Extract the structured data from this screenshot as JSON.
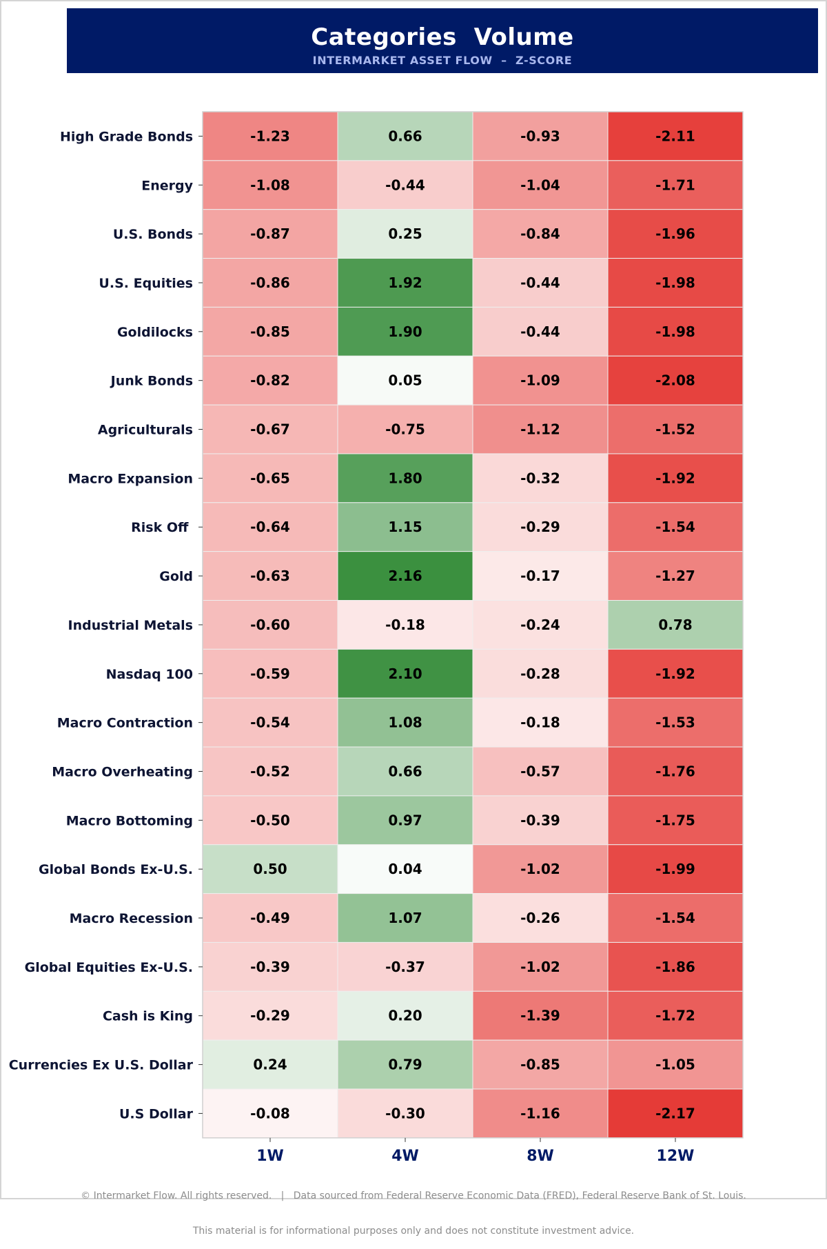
{
  "header": {
    "title": "Categories  Volume",
    "subtitle": "INTERMARKET ASSET FLOW  –  Z-SCORE"
  },
  "footer": {
    "line1": "© Intermarket Flow. All rights reserved.   |   Data sourced from Federal Reserve Economic Data (FRED), Federal Reserve Bank of St. Louis.",
    "line2": "This material is for informational purposes only and does not constitute investment advice."
  },
  "colors": {
    "header_bg": "#001a66",
    "subtitle": "#a9b8ee",
    "label_text": "#0d1433",
    "axis_text": "#001a66",
    "negative_max": "#e53935",
    "positive_max": "#388e3c",
    "neutral": "#ffffff"
  },
  "chart_data": {
    "type": "heatmap",
    "title": "",
    "xlabel": "",
    "ylabel": "",
    "columns": [
      "1W",
      "4W",
      "8W",
      "12W"
    ],
    "rows": [
      "High Grade Bonds",
      "Energy",
      "U.S. Bonds",
      "U.S. Equities",
      "Goldilocks",
      "Junk Bonds",
      "Agriculturals",
      "Macro Expansion",
      "Risk Off ",
      "Gold",
      "Industrial Metals",
      "Nasdaq 100",
      "Macro Contraction",
      "Macro Overheating",
      "Macro Bottoming",
      "Global Bonds Ex-U.S.",
      "Macro Recession",
      "Global Equities Ex-U.S.",
      "Cash is King",
      "Currencies Ex U.S. Dollar",
      "U.S Dollar"
    ],
    "values": [
      [
        -1.23,
        0.66,
        -0.93,
        -2.11
      ],
      [
        -1.08,
        -0.44,
        -1.04,
        -1.71
      ],
      [
        -0.87,
        0.25,
        -0.84,
        -1.96
      ],
      [
        -0.86,
        1.92,
        -0.44,
        -1.98
      ],
      [
        -0.85,
        1.9,
        -0.44,
        -1.98
      ],
      [
        -0.82,
        0.05,
        -1.09,
        -2.08
      ],
      [
        -0.67,
        -0.75,
        -1.12,
        -1.52
      ],
      [
        -0.65,
        1.8,
        -0.32,
        -1.92
      ],
      [
        -0.64,
        1.15,
        -0.29,
        -1.54
      ],
      [
        -0.63,
        2.16,
        -0.17,
        -1.27
      ],
      [
        -0.6,
        -0.18,
        -0.24,
        0.78
      ],
      [
        -0.59,
        2.1,
        -0.28,
        -1.92
      ],
      [
        -0.54,
        1.08,
        -0.18,
        -1.53
      ],
      [
        -0.52,
        0.66,
        -0.57,
        -1.76
      ],
      [
        -0.5,
        0.97,
        -0.39,
        -1.75
      ],
      [
        0.5,
        0.04,
        -1.02,
        -1.99
      ],
      [
        -0.49,
        1.07,
        -0.26,
        -1.54
      ],
      [
        -0.39,
        -0.37,
        -1.02,
        -1.86
      ],
      [
        -0.29,
        0.2,
        -1.39,
        -1.72
      ],
      [
        0.24,
        0.79,
        -0.85,
        -1.05
      ],
      [
        -0.08,
        -0.3,
        -1.16,
        -2.17
      ]
    ],
    "color_scale": {
      "min": -2.2,
      "center": 0,
      "max": 2.2
    },
    "cell_labels": "values to two decimals",
    "legend": "none",
    "grid": false
  }
}
